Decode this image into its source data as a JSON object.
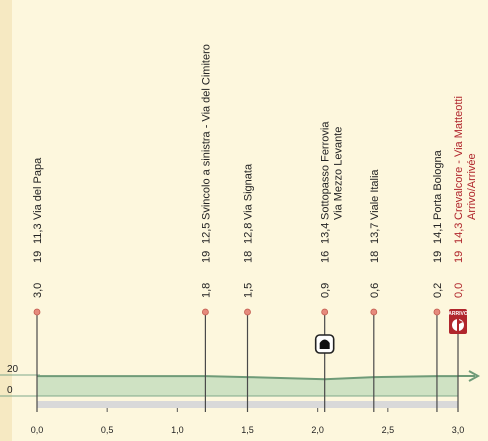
{
  "colors": {
    "background": "#fdf7dd",
    "profile_fill": "#cfe2c3",
    "profile_line": "#6f9b78",
    "arrivo_red": "#b0262c",
    "dot": "#e68a7c"
  },
  "chart_data": {
    "type": "area",
    "title": "",
    "xlabel": "",
    "ylabel": "",
    "xlim": [
      0,
      3.0
    ],
    "ylim": [
      0,
      20
    ],
    "x_ticks": [
      "0,0",
      "0,5",
      "1,0",
      "1,5",
      "2,0",
      "2,5",
      "3,0"
    ],
    "y_ticks": [
      "20",
      "0"
    ],
    "profile": [
      {
        "x": 0.0,
        "y": 19
      },
      {
        "x": 1.2,
        "y": 19
      },
      {
        "x": 1.5,
        "y": 18
      },
      {
        "x": 2.05,
        "y": 16
      },
      {
        "x": 2.4,
        "y": 18
      },
      {
        "x": 2.85,
        "y": 19
      },
      {
        "x": 3.0,
        "y": 19
      }
    ],
    "points": [
      {
        "x": 0.0,
        "rem": "3,0",
        "alt": "19",
        "km": "11,3",
        "name1": "Via del Papa",
        "name2": "",
        "icon": "none",
        "finish": false
      },
      {
        "x": 1.2,
        "rem": "1,8",
        "alt": "19",
        "km": "12,5",
        "name1": "Svincolo a sinistra - Via del Cimitero",
        "name2": "",
        "icon": "none",
        "finish": false
      },
      {
        "x": 1.5,
        "rem": "1,5",
        "alt": "18",
        "km": "12,8",
        "name1": "Via Signata",
        "name2": "",
        "icon": "none",
        "finish": false
      },
      {
        "x": 2.05,
        "rem": "0,9",
        "alt": "16",
        "km": "13,4",
        "name1": "Sottopasso Ferrovia",
        "name2": "Via Mezzo Levante",
        "icon": "tunnel-icon",
        "finish": false
      },
      {
        "x": 2.4,
        "rem": "0,6",
        "alt": "18",
        "km": "13,7",
        "name1": "Viale Italia",
        "name2": "",
        "icon": "none",
        "finish": false
      },
      {
        "x": 2.85,
        "rem": "0,2",
        "alt": "19",
        "km": "14,1",
        "name1": "Porta Bologna",
        "name2": "",
        "icon": "none",
        "finish": false
      },
      {
        "x": 3.0,
        "rem": "0,0",
        "alt": "19",
        "km": "14,3",
        "name1": "Crevalcore - Via Matteotti",
        "name2": "Arrivo/Arrivée",
        "icon": "arrivo-icon",
        "finish": true
      }
    ],
    "finish_badge": "ARRIVO"
  }
}
